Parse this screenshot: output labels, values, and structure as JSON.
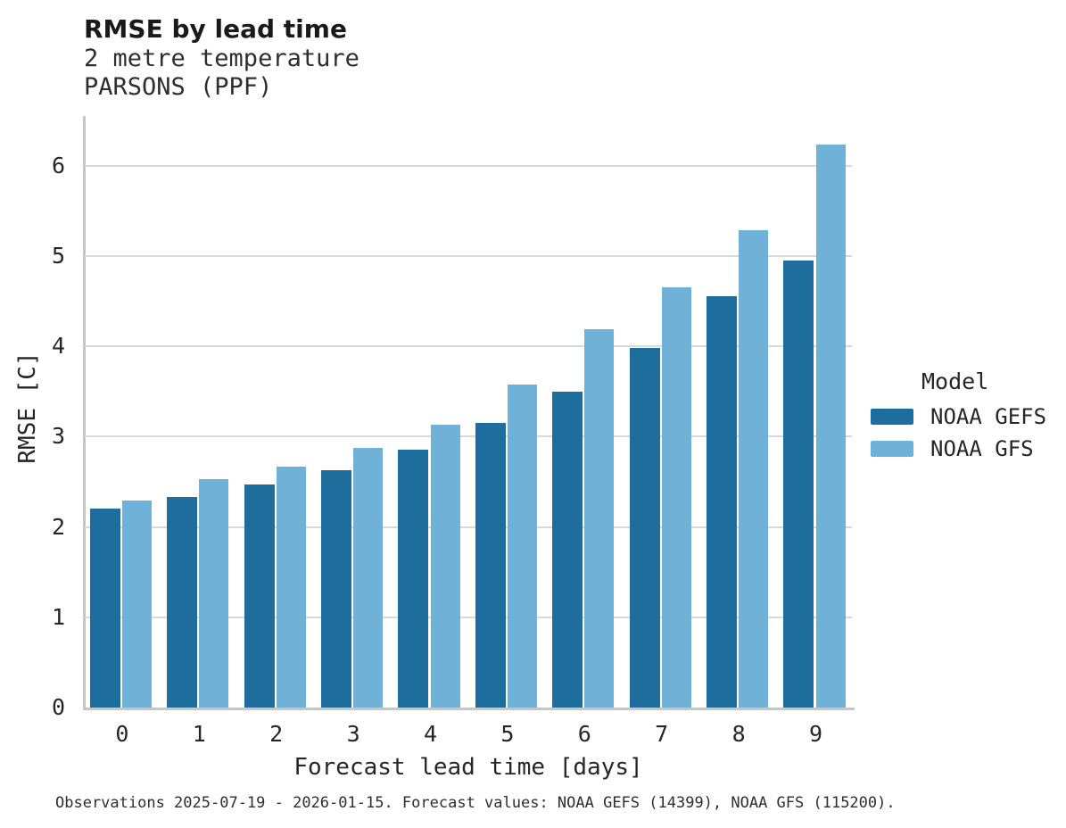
{
  "chart_data": {
    "type": "bar",
    "title": "RMSE by lead time",
    "subtitle_lines": [
      "2 metre temperature",
      "PARSONS (PPF)"
    ],
    "xlabel": "Forecast lead time [days]",
    "ylabel": "RMSE [C]",
    "categories": [
      "0",
      "1",
      "2",
      "3",
      "4",
      "5",
      "6",
      "7",
      "8",
      "9"
    ],
    "series": [
      {
        "name": "NOAA GEFS",
        "color": "#1d6e9c",
        "values": [
          2.2,
          2.33,
          2.47,
          2.63,
          2.86,
          3.15,
          3.5,
          3.98,
          4.55,
          4.95
        ]
      },
      {
        "name": "NOAA GFS",
        "color": "#70b1d8",
        "values": [
          2.29,
          2.53,
          2.67,
          2.87,
          3.13,
          3.58,
          4.19,
          4.65,
          5.29,
          6.23
        ]
      }
    ],
    "ylim": [
      0,
      6.55
    ],
    "yticks": [
      0,
      1,
      2,
      3,
      4,
      5,
      6
    ],
    "grid": true,
    "legend": {
      "title": "Model",
      "position": "right"
    },
    "caption": "Observations 2025-07-19 - 2026-01-15. Forecast values: NOAA GEFS (14399), NOAA GFS (115200)."
  },
  "colors": {
    "grid": "#d9d9d9",
    "spine": "#c6c6c6",
    "title_text": "#1a1a1a",
    "body_text": "#262626"
  }
}
